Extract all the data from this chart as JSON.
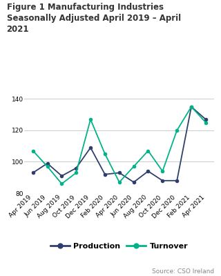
{
  "title": "Figure 1 Manufacturing Industries\nSeasonally Adjusted April 2019 – April\n2021",
  "x_labels": [
    "Apr 2019",
    "Jun 2019",
    "Aug 2019",
    "Oct 2019",
    "Dec 2019",
    "Feb 2020",
    "Apr 2020",
    "Jun 2020",
    "Aug 2020",
    "Oct 2020",
    "Dec 2020",
    "Feb 2021",
    "Apr 2021"
  ],
  "prod_data": [
    93,
    99,
    91,
    96,
    109,
    92,
    93,
    87,
    94,
    88,
    88,
    135,
    127
  ],
  "turn_data": [
    107,
    97,
    86,
    93,
    127,
    105,
    87,
    97,
    107,
    94,
    120,
    135,
    125
  ],
  "production_color": "#2e3f6e",
  "turnover_color": "#00b388",
  "ylim": [
    80,
    145
  ],
  "yticks": [
    80,
    100,
    120,
    140
  ],
  "source_text": "Source: CSO Ireland",
  "background_color": "#ffffff",
  "grid_color": "#cccccc",
  "title_fontsize": 8.5,
  "tick_fontsize": 6.5,
  "legend_fontsize": 8
}
